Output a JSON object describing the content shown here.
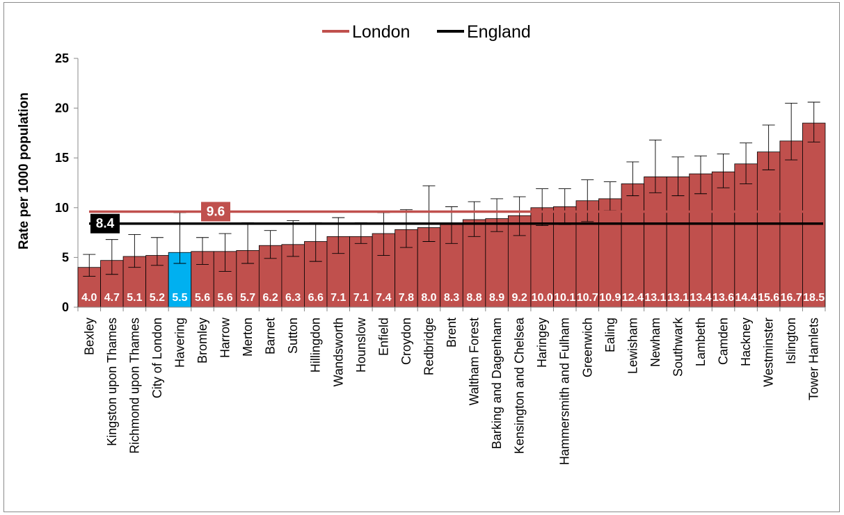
{
  "chart_data": {
    "type": "bar",
    "title": "",
    "xlabel": "",
    "ylabel": "Rate per 1000 population",
    "ylim": [
      0,
      25
    ],
    "yticks": [
      0,
      5,
      10,
      15,
      20,
      25
    ],
    "grid": false,
    "legend_position": "top-center",
    "categories": [
      "Bexley",
      "Kingston upon Thames",
      "Richmond upon Thames",
      "City of London",
      "Havering",
      "Bromley",
      "Harrow",
      "Merton",
      "Barnet",
      "Sutton",
      "Hillingdon",
      "Wandsworth",
      "Hounslow",
      "Enfield",
      "Croydon",
      "Redbridge",
      "Brent",
      "Waltham Forest",
      "Barking and Dagenham",
      "Kensington and Chelsea",
      "Haringey",
      "Hammersmith and Fulham",
      "Greenwich",
      "Ealing",
      "Lewisham",
      "Newham",
      "Southwark",
      "Lambeth",
      "Camden",
      "Hackney",
      "Westminster",
      "Islington",
      "Tower Hamlets"
    ],
    "values": [
      4.0,
      4.7,
      5.1,
      5.2,
      5.5,
      5.6,
      5.6,
      5.7,
      6.2,
      6.3,
      6.6,
      7.1,
      7.1,
      7.4,
      7.8,
      8.0,
      8.3,
      8.8,
      8.9,
      9.2,
      10.0,
      10.1,
      10.7,
      10.9,
      12.4,
      13.1,
      13.1,
      13.4,
      13.6,
      14.4,
      15.6,
      16.7,
      18.5
    ],
    "value_labels": [
      "4.0",
      "4.7",
      "5.1",
      "5.2",
      "5.5",
      "5.6",
      "5.6",
      "5.7",
      "6.2",
      "6.3",
      "6.6",
      "7.1",
      "7.1",
      "7.4",
      "7.8",
      "8.0",
      "8.3",
      "8.8",
      "8.9",
      "9.2",
      "10.0",
      "10.1",
      "10.7",
      "10.9",
      "12.4",
      "13.1",
      "13.1",
      "13.4",
      "13.6",
      "14.4",
      "15.6",
      "16.7",
      "18.5"
    ],
    "error_low": [
      3.1,
      3.3,
      4.0,
      4.2,
      4.4,
      4.3,
      3.6,
      4.4,
      4.9,
      5.1,
      4.6,
      5.4,
      6.4,
      5.2,
      6.0,
      6.6,
      6.4,
      7.1,
      7.6,
      7.2,
      8.2,
      8.3,
      8.6,
      9.7,
      11.2,
      11.5,
      11.2,
      11.4,
      12.0,
      12.4,
      13.8,
      14.8,
      16.6
    ],
    "error_high": [
      5.3,
      6.8,
      7.3,
      7.0,
      9.5,
      7.0,
      7.4,
      8.5,
      7.7,
      8.7,
      8.5,
      9.0,
      8.5,
      9.5,
      9.8,
      12.2,
      10.1,
      10.6,
      10.9,
      11.1,
      11.9,
      11.9,
      12.8,
      12.6,
      14.6,
      16.8,
      15.1,
      15.2,
      15.4,
      16.5,
      18.3,
      20.5,
      20.6
    ],
    "bar_color": "#c0504d",
    "highlight_category": "Havering",
    "highlight_color": "#00b0f0",
    "reference_lines": [
      {
        "name": "London",
        "value": 9.6,
        "label": "9.6",
        "color": "#c0504d"
      },
      {
        "name": "England",
        "value": 8.4,
        "label": "8.4",
        "color": "#000000"
      }
    ]
  }
}
